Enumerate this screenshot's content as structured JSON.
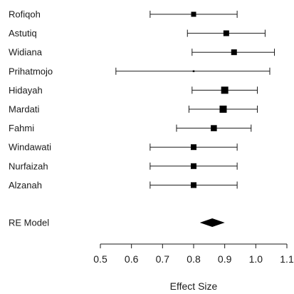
{
  "chart_data": {
    "type": "forest",
    "xlabel": "Effect Size",
    "xlim": [
      0.5,
      1.1
    ],
    "ticks": [
      0.5,
      0.6,
      0.7,
      0.8,
      0.9,
      1.0,
      1.1
    ],
    "tick_labels": [
      "0.5",
      "0.6",
      "0.7",
      "0.8",
      "0.9",
      "1.0",
      "1.1"
    ],
    "studies": [
      {
        "name": "Rofiqoh",
        "estimate": 0.8,
        "lower": 0.66,
        "upper": 0.94,
        "weight": 7
      },
      {
        "name": "Astutiq",
        "estimate": 0.905,
        "lower": 0.78,
        "upper": 1.03,
        "weight": 8
      },
      {
        "name": "Widiana",
        "estimate": 0.93,
        "lower": 0.795,
        "upper": 1.06,
        "weight": 8
      },
      {
        "name": "Prihatmojo",
        "estimate": 0.8,
        "lower": 0.55,
        "upper": 1.045,
        "weight": 2.5
      },
      {
        "name": "Hidayah",
        "estimate": 0.9,
        "lower": 0.795,
        "upper": 1.005,
        "weight": 10
      },
      {
        "name": "Mardati",
        "estimate": 0.895,
        "lower": 0.785,
        "upper": 1.005,
        "weight": 10
      },
      {
        "name": "Fahmi",
        "estimate": 0.865,
        "lower": 0.745,
        "upper": 0.985,
        "weight": 8.5
      },
      {
        "name": "Windawati",
        "estimate": 0.8,
        "lower": 0.66,
        "upper": 0.94,
        "weight": 8
      },
      {
        "name": "Nurfaizah",
        "estimate": 0.8,
        "lower": 0.66,
        "upper": 0.94,
        "weight": 8
      },
      {
        "name": "Alzanah",
        "estimate": 0.8,
        "lower": 0.66,
        "upper": 0.94,
        "weight": 8
      }
    ],
    "summary": {
      "name": "RE Model",
      "estimate": 0.86,
      "lower": 0.82,
      "upper": 0.9
    }
  }
}
